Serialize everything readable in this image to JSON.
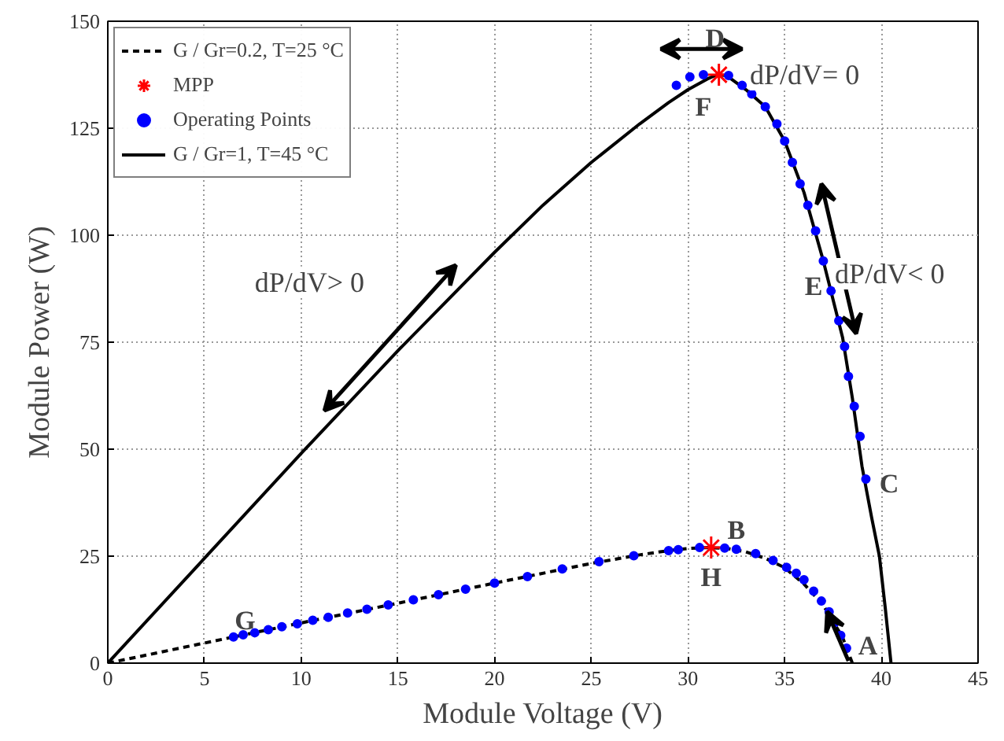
{
  "chart_data": {
    "type": "line",
    "xlabel": "Module Voltage (V)",
    "ylabel": "Module Power (W)",
    "xlim": [
      0,
      45
    ],
    "xticks": [
      0,
      5,
      10,
      15,
      20,
      25,
      30,
      35,
      40,
      45
    ],
    "ylim": [
      0,
      150
    ],
    "yticks": [
      0,
      25,
      50,
      75,
      100,
      125,
      150
    ],
    "grid": true,
    "legend": "top left",
    "series": [
      {
        "name": "G / Gr=0.2, T=25 °C",
        "line_style": "dashed",
        "color": "#000000",
        "x": [
          0,
          5,
          10,
          15,
          20,
          25,
          27.5,
          29,
          30,
          31,
          32,
          33,
          34,
          35,
          36,
          37,
          38,
          38.5
        ],
        "values": [
          0,
          4.7,
          9.4,
          14,
          18.7,
          23.3,
          25.3,
          26.3,
          26.8,
          27,
          26.8,
          26,
          24.5,
          22.3,
          18.5,
          13.5,
          6,
          0
        ]
      },
      {
        "name": "MPP",
        "type": "scatter",
        "marker": "cross",
        "color": "#ff0000",
        "x": [
          31.2,
          31.6
        ],
        "values": [
          27,
          137.5
        ]
      },
      {
        "name": "Operating Points",
        "type": "scatter",
        "marker": "circle",
        "color": "#0000ff",
        "x": [
          6.5,
          7.0,
          7.6,
          8.3,
          9.0,
          9.8,
          10.6,
          11.4,
          12.4,
          13.4,
          14.5,
          15.8,
          17.1,
          18.5,
          20,
          21.7,
          23.5,
          25.4,
          27.2,
          29,
          29.5,
          30.6,
          31.9,
          32.5,
          33.5,
          34.4,
          35.1,
          35.6,
          36.0,
          36.5,
          36.9,
          37.3,
          37.6,
          37.9,
          38.2,
          29.4,
          30.1,
          30.8,
          32.1,
          32.8,
          33.3,
          34.0,
          34.6,
          35.0,
          35.4,
          35.8,
          36.2,
          36.6,
          37.0,
          37.4,
          37.8,
          38.1,
          38.3,
          38.6,
          38.9,
          39.2
        ],
        "values": [
          6.1,
          6.6,
          7.1,
          7.8,
          8.5,
          9.2,
          10.0,
          10.7,
          11.7,
          12.6,
          13.6,
          14.8,
          16.0,
          17.3,
          18.7,
          20.2,
          22.0,
          23.7,
          25.1,
          26.3,
          26.5,
          27.0,
          26.9,
          26.6,
          25.6,
          24.0,
          22.4,
          21.0,
          19.5,
          16.8,
          14.5,
          12.0,
          9.5,
          6.5,
          3.5,
          135,
          137,
          137.5,
          137.3,
          135,
          133,
          130,
          126,
          122,
          117,
          112,
          107,
          101,
          94,
          87,
          80,
          74,
          67,
          60,
          53,
          43
        ]
      },
      {
        "name": "G / Gr=1, T=45 °C",
        "line_style": "solid",
        "color": "#000000",
        "x": [
          0,
          5,
          10,
          15,
          20,
          22.5,
          25,
          27.5,
          29,
          30,
          31,
          31.5,
          32,
          33,
          34,
          35,
          36,
          37,
          38,
          38.5,
          39,
          39.5,
          39.9,
          40.2,
          40.5
        ],
        "values": [
          0,
          24.5,
          49,
          73,
          96,
          107,
          117,
          126,
          131,
          134,
          136.5,
          137.5,
          137.3,
          134,
          130,
          122,
          110,
          94,
          76,
          62,
          46,
          34,
          25,
          13,
          0
        ]
      }
    ],
    "annotations": [
      "A",
      "B",
      "C",
      "D",
      "E",
      "F",
      "G",
      "H",
      "dP/dV= 0",
      "dP/dV< 0",
      "dP/dV> 0"
    ]
  }
}
